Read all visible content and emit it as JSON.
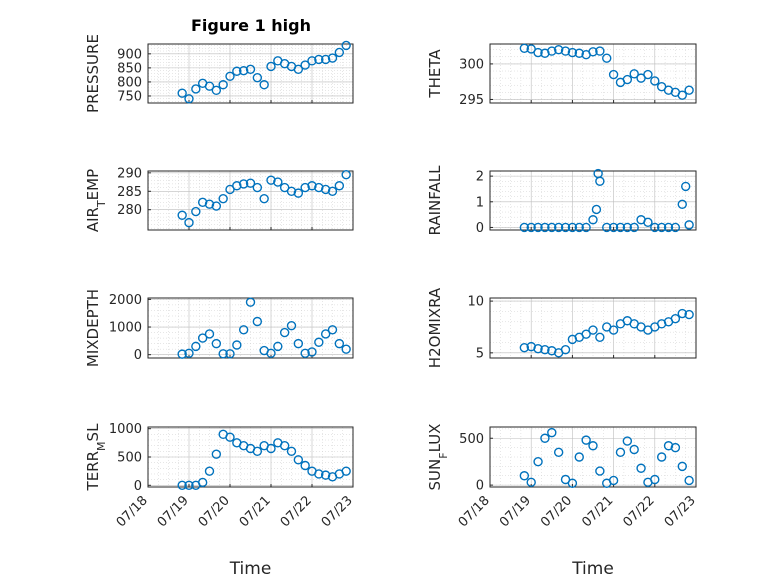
{
  "figure": {
    "title": "Figure 1 high",
    "colors": {
      "marker": "#0072bd",
      "axes": "#262626",
      "grid": "#bdbdbd",
      "background": "#ffffff"
    }
  },
  "chart_data": [
    {
      "type": "scatter",
      "ylabel": "PRESSURE",
      "xlabel": "",
      "grid": true,
      "marker": "circle",
      "xlim": [
        "07/18",
        "07/23"
      ],
      "ylim": [
        725,
        935
      ],
      "yticks": [
        750,
        800,
        850,
        900
      ],
      "xticks": [],
      "x": [
        "07/18 20:00",
        "07/19 00:00",
        "07/19 04:00",
        "07/19 08:00",
        "07/19 12:00",
        "07/19 16:00",
        "07/19 20:00",
        "07/20 00:00",
        "07/20 04:00",
        "07/20 08:00",
        "07/20 12:00",
        "07/20 16:00",
        "07/20 20:00",
        "07/21 00:00",
        "07/21 04:00",
        "07/21 08:00",
        "07/21 12:00",
        "07/21 16:00",
        "07/21 20:00",
        "07/22 00:00",
        "07/22 04:00",
        "07/22 08:00",
        "07/22 12:00",
        "07/22 16:00",
        "07/22 20:00"
      ],
      "y": [
        760,
        740,
        775,
        795,
        785,
        770,
        790,
        820,
        838,
        840,
        845,
        815,
        790,
        855,
        875,
        865,
        855,
        845,
        860,
        875,
        880,
        880,
        885,
        905,
        930
      ]
    },
    {
      "type": "scatter",
      "ylabel": "THETA",
      "xlabel": "",
      "grid": true,
      "marker": "circle",
      "xlim": [
        "07/18",
        "07/23"
      ],
      "ylim": [
        294.5,
        302.8
      ],
      "yticks": [
        295,
        300
      ],
      "xticks": [],
      "x": [
        "07/18 20:00",
        "07/19 00:00",
        "07/19 04:00",
        "07/19 08:00",
        "07/19 12:00",
        "07/19 16:00",
        "07/19 20:00",
        "07/20 00:00",
        "07/20 04:00",
        "07/20 08:00",
        "07/20 12:00",
        "07/20 16:00",
        "07/20 20:00",
        "07/21 00:00",
        "07/21 04:00",
        "07/21 08:00",
        "07/21 12:00",
        "07/21 16:00",
        "07/21 20:00",
        "07/22 00:00",
        "07/22 04:00",
        "07/22 08:00",
        "07/22 12:00",
        "07/22 16:00",
        "07/22 20:00"
      ],
      "y": [
        302.2,
        302.1,
        301.6,
        301.5,
        301.8,
        302.0,
        301.8,
        301.6,
        301.5,
        301.3,
        301.7,
        301.8,
        300.8,
        298.5,
        297.4,
        297.8,
        298.6,
        298.0,
        298.5,
        297.6,
        296.8,
        296.3,
        296.0,
        295.6,
        296.3
      ]
    },
    {
      "type": "scatter",
      "ylabel": "AIR_TEMP",
      "xlabel": "",
      "grid": true,
      "marker": "circle",
      "xlim": [
        "07/18",
        "07/23"
      ],
      "ylim": [
        274.5,
        290.5
      ],
      "yticks": [
        280,
        285,
        290
      ],
      "xticks": [],
      "x": [
        "07/18 20:00",
        "07/19 00:00",
        "07/19 04:00",
        "07/19 08:00",
        "07/19 12:00",
        "07/19 16:00",
        "07/19 20:00",
        "07/20 00:00",
        "07/20 04:00",
        "07/20 08:00",
        "07/20 12:00",
        "07/20 16:00",
        "07/20 20:00",
        "07/21 00:00",
        "07/21 04:00",
        "07/21 08:00",
        "07/21 12:00",
        "07/21 16:00",
        "07/21 20:00",
        "07/22 00:00",
        "07/22 04:00",
        "07/22 08:00",
        "07/22 12:00",
        "07/22 16:00",
        "07/22 20:00"
      ],
      "y": [
        278.5,
        276.5,
        279.5,
        282.0,
        281.5,
        281.0,
        283.0,
        285.5,
        286.5,
        287.0,
        287.2,
        286.0,
        283.0,
        288.0,
        287.5,
        286.0,
        285.0,
        284.5,
        286.0,
        286.5,
        286.0,
        285.5,
        285.0,
        286.5,
        289.5
      ]
    },
    {
      "type": "scatter",
      "ylabel": "RAINFALL",
      "xlabel": "",
      "grid": true,
      "marker": "circle",
      "xlim": [
        "07/18",
        "07/23"
      ],
      "ylim": [
        -0.1,
        2.2
      ],
      "yticks": [
        0,
        1,
        2
      ],
      "xticks": [],
      "x": [
        "07/18 20:00",
        "07/19 00:00",
        "07/19 04:00",
        "07/19 08:00",
        "07/19 12:00",
        "07/19 16:00",
        "07/19 20:00",
        "07/20 00:00",
        "07/20 04:00",
        "07/20 08:00",
        "07/20 12:00",
        "07/20 14:00",
        "07/20 15:00",
        "07/20 16:00",
        "07/20 20:00",
        "07/21 00:00",
        "07/21 04:00",
        "07/21 08:00",
        "07/21 12:00",
        "07/21 16:00",
        "07/21 20:00",
        "07/22 00:00",
        "07/22 04:00",
        "07/22 08:00",
        "07/22 12:00",
        "07/22 16:00",
        "07/22 18:00",
        "07/22 20:00"
      ],
      "y": [
        0,
        0,
        0,
        0,
        0,
        0,
        0,
        0,
        0,
        0,
        0.3,
        0.7,
        2.1,
        1.8,
        0,
        0,
        0,
        0,
        0,
        0.3,
        0.2,
        0,
        0,
        0,
        0,
        0.9,
        1.6,
        0.1
      ]
    },
    {
      "type": "scatter",
      "ylabel": "MIXDEPTH",
      "xlabel": "",
      "grid": true,
      "marker": "circle",
      "xlim": [
        "07/18",
        "07/23"
      ],
      "ylim": [
        -120,
        2050
      ],
      "yticks": [
        0,
        1000,
        2000
      ],
      "xticks": [],
      "x": [
        "07/18 20:00",
        "07/19 00:00",
        "07/19 04:00",
        "07/19 08:00",
        "07/19 12:00",
        "07/19 16:00",
        "07/19 20:00",
        "07/20 00:00",
        "07/20 04:00",
        "07/20 08:00",
        "07/20 12:00",
        "07/20 16:00",
        "07/20 20:00",
        "07/21 00:00",
        "07/21 04:00",
        "07/21 08:00",
        "07/21 12:00",
        "07/21 16:00",
        "07/21 20:00",
        "07/22 00:00",
        "07/22 04:00",
        "07/22 08:00",
        "07/22 12:00",
        "07/22 16:00",
        "07/22 20:00"
      ],
      "y": [
        20,
        50,
        300,
        600,
        750,
        400,
        30,
        30,
        350,
        900,
        1900,
        1200,
        150,
        50,
        300,
        800,
        1050,
        400,
        50,
        100,
        450,
        750,
        900,
        400,
        200
      ]
    },
    {
      "type": "scatter",
      "ylabel": "H2OMIXRA",
      "xlabel": "",
      "grid": true,
      "marker": "circle",
      "xlim": [
        "07/18",
        "07/23"
      ],
      "ylim": [
        4.5,
        10.3
      ],
      "yticks": [
        5,
        10
      ],
      "xticks": [],
      "x": [
        "07/18 20:00",
        "07/19 00:00",
        "07/19 04:00",
        "07/19 08:00",
        "07/19 12:00",
        "07/19 16:00",
        "07/19 20:00",
        "07/20 00:00",
        "07/20 04:00",
        "07/20 08:00",
        "07/20 12:00",
        "07/20 16:00",
        "07/20 20:00",
        "07/21 00:00",
        "07/21 04:00",
        "07/21 08:00",
        "07/21 12:00",
        "07/21 16:00",
        "07/21 20:00",
        "07/22 00:00",
        "07/22 04:00",
        "07/22 08:00",
        "07/22 12:00",
        "07/22 16:00",
        "07/22 20:00"
      ],
      "y": [
        5.5,
        5.6,
        5.4,
        5.3,
        5.2,
        5.0,
        5.3,
        6.3,
        6.5,
        6.8,
        7.2,
        6.5,
        7.5,
        7.2,
        7.8,
        8.1,
        7.8,
        7.5,
        7.2,
        7.5,
        7.8,
        8.0,
        8.3,
        8.8,
        8.7
      ]
    },
    {
      "type": "scatter",
      "ylabel": "TERR_MSL",
      "xlabel": "Time",
      "grid": true,
      "marker": "circle",
      "xlim": [
        "07/18",
        "07/23"
      ],
      "ylim": [
        -30,
        1030
      ],
      "yticks": [
        0,
        500,
        1000
      ],
      "xticks": [
        "07/18",
        "07/19",
        "07/20",
        "07/21",
        "07/22",
        "07/23"
      ],
      "x": [
        "07/18 20:00",
        "07/19 00:00",
        "07/19 04:00",
        "07/19 08:00",
        "07/19 12:00",
        "07/19 16:00",
        "07/19 20:00",
        "07/20 00:00",
        "07/20 04:00",
        "07/20 08:00",
        "07/20 12:00",
        "07/20 16:00",
        "07/20 20:00",
        "07/21 00:00",
        "07/21 04:00",
        "07/21 08:00",
        "07/21 12:00",
        "07/21 16:00",
        "07/21 20:00",
        "07/22 00:00",
        "07/22 04:00",
        "07/22 08:00",
        "07/22 12:00",
        "07/22 16:00",
        "07/22 20:00"
      ],
      "y": [
        0,
        0,
        0,
        50,
        250,
        550,
        900,
        850,
        750,
        700,
        650,
        600,
        700,
        650,
        750,
        700,
        600,
        450,
        350,
        250,
        200,
        180,
        150,
        200,
        250
      ]
    },
    {
      "type": "scatter",
      "ylabel": "SUN_FLUX",
      "xlabel": "Time",
      "grid": true,
      "marker": "circle",
      "xlim": [
        "07/18",
        "07/23"
      ],
      "ylim": [
        -20,
        620
      ],
      "yticks": [
        0,
        500
      ],
      "xticks": [
        "07/18",
        "07/19",
        "07/20",
        "07/21",
        "07/22",
        "07/23"
      ],
      "x": [
        "07/18 20:00",
        "07/19 00:00",
        "07/19 04:00",
        "07/19 08:00",
        "07/19 12:00",
        "07/19 16:00",
        "07/19 20:00",
        "07/20 00:00",
        "07/20 04:00",
        "07/20 08:00",
        "07/20 12:00",
        "07/20 16:00",
        "07/20 20:00",
        "07/21 00:00",
        "07/21 04:00",
        "07/21 08:00",
        "07/21 12:00",
        "07/21 16:00",
        "07/21 20:00",
        "07/22 00:00",
        "07/22 04:00",
        "07/22 08:00",
        "07/22 12:00",
        "07/22 16:00",
        "07/22 20:00"
      ],
      "y": [
        100,
        30,
        250,
        500,
        560,
        350,
        60,
        20,
        300,
        480,
        420,
        150,
        20,
        50,
        350,
        470,
        380,
        180,
        30,
        60,
        300,
        420,
        400,
        200,
        50
      ]
    }
  ]
}
